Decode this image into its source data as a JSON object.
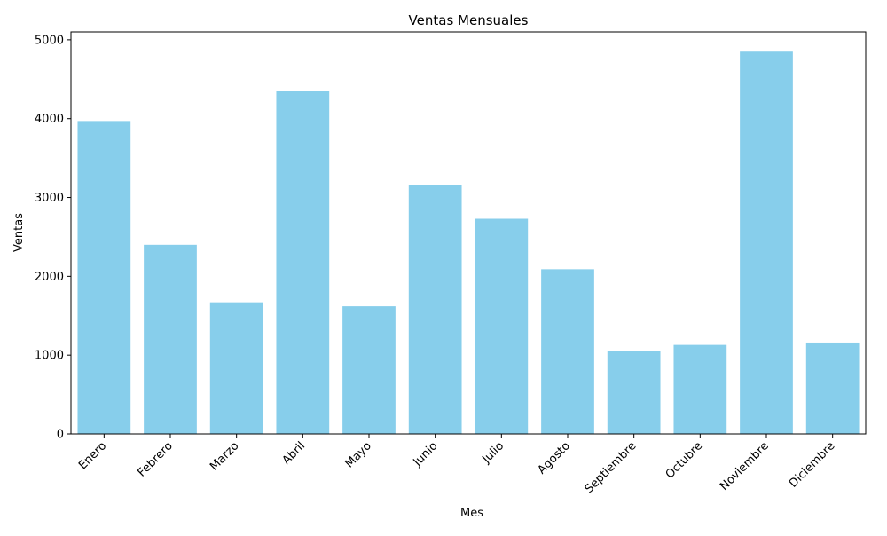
{
  "chart_data": {
    "type": "bar",
    "title": "Ventas Mensuales",
    "xlabel": "Mes",
    "ylabel": "Ventas",
    "categories": [
      "Enero",
      "Febrero",
      "Marzo",
      "Abril",
      "Mayo",
      "Junio",
      "Julio",
      "Agosto",
      "Septiembre",
      "Octubre",
      "Noviembre",
      "Diciembre"
    ],
    "values": [
      3970,
      2400,
      1670,
      4350,
      1620,
      3160,
      2730,
      2090,
      1050,
      1130,
      4850,
      1160
    ],
    "ylim": [
      0,
      5100
    ],
    "yticks": [
      0,
      1000,
      2000,
      3000,
      4000,
      5000
    ],
    "bar_color": "#87CEEB",
    "grid": false,
    "legend": "none"
  }
}
